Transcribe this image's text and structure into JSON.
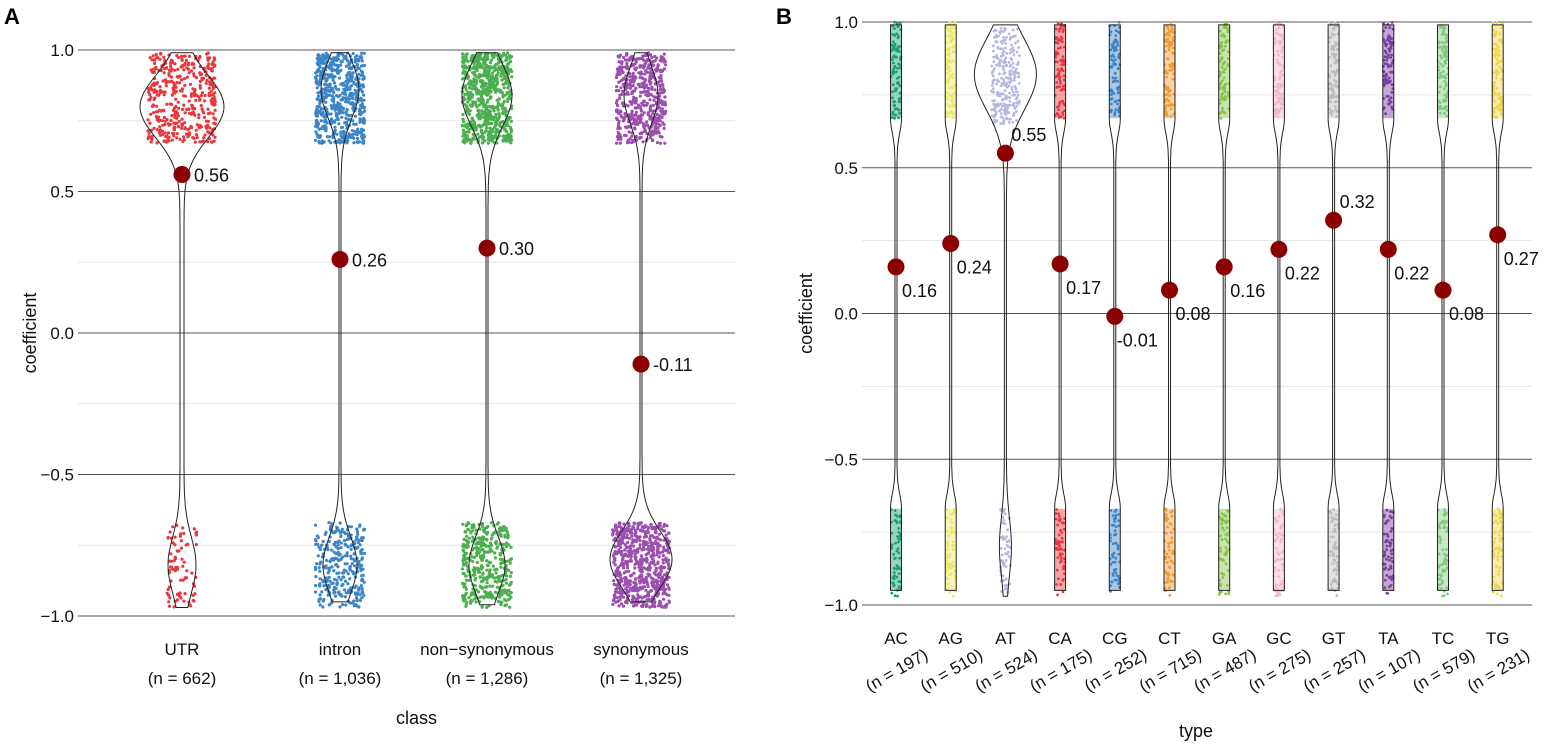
{
  "chart_data": [
    {
      "panel_label": "A",
      "type": "violin",
      "xlabel": "class",
      "ylabel": "coefficient",
      "ylim": [
        -1.0,
        1.0
      ],
      "y_ticks": [
        "1.0",
        "0.5",
        "0.0",
        "−0.5",
        "−1.0"
      ],
      "categories": [
        {
          "name": "UTR",
          "n_label": "(n = 662)",
          "median": 0.56,
          "median_label": "0.56",
          "color": "#e8383d",
          "upper_count": 420,
          "lower_count": 80,
          "upper_width": 0.8,
          "lower_width": 0.25
        },
        {
          "name": "intron",
          "n_label": "(n = 1,036)",
          "median": 0.26,
          "median_label": "0.26",
          "color": "#3d85c6",
          "upper_count": 600,
          "lower_count": 300,
          "upper_width": 0.45,
          "lower_width": 0.45
        },
        {
          "name": "non−synonymous",
          "n_label": "(n = 1,286)",
          "median": 0.3,
          "median_label": "0.30",
          "color": "#4caf50",
          "upper_count": 720,
          "lower_count": 400,
          "upper_width": 0.55,
          "lower_width": 0.45
        },
        {
          "name": "synonymous",
          "n_label": "(n = 1,325)",
          "median": -0.11,
          "median_label": "-0.11",
          "color": "#9b4fae",
          "upper_count": 500,
          "lower_count": 650,
          "upper_width": 0.4,
          "lower_width": 0.7
        }
      ]
    },
    {
      "panel_label": "B",
      "type": "violin",
      "xlabel": "type",
      "ylabel": "coefficient",
      "ylim": [
        -1.0,
        1.0
      ],
      "y_ticks": [
        "1.0",
        "0.5",
        "0.0",
        "−0.5",
        "−1.0"
      ],
      "categories": [
        {
          "name": "AC",
          "n_label": "(n = 197)",
          "median": 0.16,
          "median_label": "0.16",
          "color": "#1b9e77"
        },
        {
          "name": "AG",
          "n_label": "(n = 510)",
          "median": 0.24,
          "median_label": "0.24",
          "color": "#e8e866"
        },
        {
          "name": "AT",
          "n_label": "(n = 524)",
          "median": 0.55,
          "median_label": "0.55",
          "color": "#b7b7e0"
        },
        {
          "name": "CA",
          "n_label": "(n = 175)",
          "median": 0.17,
          "median_label": "0.17",
          "color": "#e8383d"
        },
        {
          "name": "CG",
          "n_label": "(n = 252)",
          "median": -0.01,
          "median_label": "-0.01",
          "color": "#3d85c6"
        },
        {
          "name": "CT",
          "n_label": "(n = 715)",
          "median": 0.08,
          "median_label": "0.08",
          "color": "#f39c34"
        },
        {
          "name": "GA",
          "n_label": "(n = 487)",
          "median": 0.16,
          "median_label": "0.16",
          "color": "#8bc34a"
        },
        {
          "name": "GC",
          "n_label": "(n = 275)",
          "median": 0.22,
          "median_label": "0.22",
          "color": "#f4b6cf"
        },
        {
          "name": "GT",
          "n_label": "(n = 257)",
          "median": 0.32,
          "median_label": "0.32",
          "color": "#bdbdbd"
        },
        {
          "name": "TA",
          "n_label": "(n = 107)",
          "median": 0.22,
          "median_label": "0.22",
          "color": "#7b3f9e"
        },
        {
          "name": "TC",
          "n_label": "(n = 579)",
          "median": 0.08,
          "median_label": "0.08",
          "color": "#7fc97f"
        },
        {
          "name": "TG",
          "n_label": "(n = 231)",
          "median": 0.27,
          "median_label": "0.27",
          "color": "#f5d54a"
        }
      ]
    }
  ],
  "colors": {
    "median_point": "#8b0000",
    "violin_stroke": "#222222",
    "grid_major": "#555555",
    "grid_minor": "#e6e6e6"
  }
}
